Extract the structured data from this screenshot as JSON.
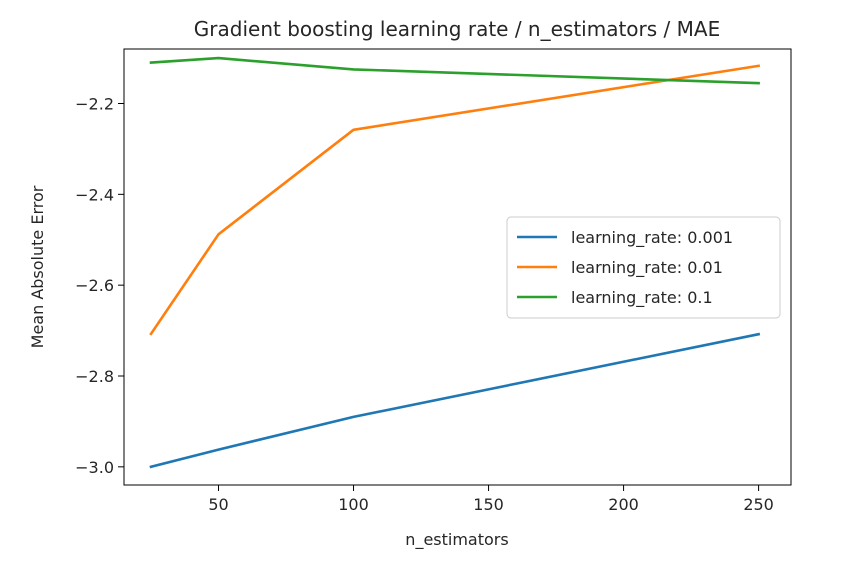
{
  "chart_data": {
    "type": "line",
    "title": "Gradient boosting learning rate / n_estimators / MAE",
    "xlabel": "n_estimators",
    "ylabel": "Mean Absolute Error",
    "xlim": [
      15,
      262
    ],
    "ylim": [
      -3.04,
      -2.08
    ],
    "xticks": [
      50,
      100,
      150,
      200,
      250
    ],
    "yticks": [
      -2.2,
      -2.4,
      -2.6,
      -2.8,
      -3.0
    ],
    "ytick_labels": [
      "−2.2",
      "−2.4",
      "−2.6",
      "−2.8",
      "−3.0"
    ],
    "grid": false,
    "legend_position": "center-right",
    "x": [
      25,
      50,
      100,
      250
    ],
    "series": [
      {
        "name": "learning_rate: 0.001",
        "color": "#1f77b4",
        "values": [
          -3.0,
          -2.962,
          -2.89,
          -2.708
        ]
      },
      {
        "name": "learning_rate: 0.01",
        "color": "#ff7f0e",
        "values": [
          -2.707,
          -2.488,
          -2.258,
          -2.117
        ]
      },
      {
        "name": "learning_rate: 0.1",
        "color": "#2ca02c",
        "values": [
          -2.11,
          -2.1,
          -2.125,
          -2.155
        ]
      }
    ]
  }
}
